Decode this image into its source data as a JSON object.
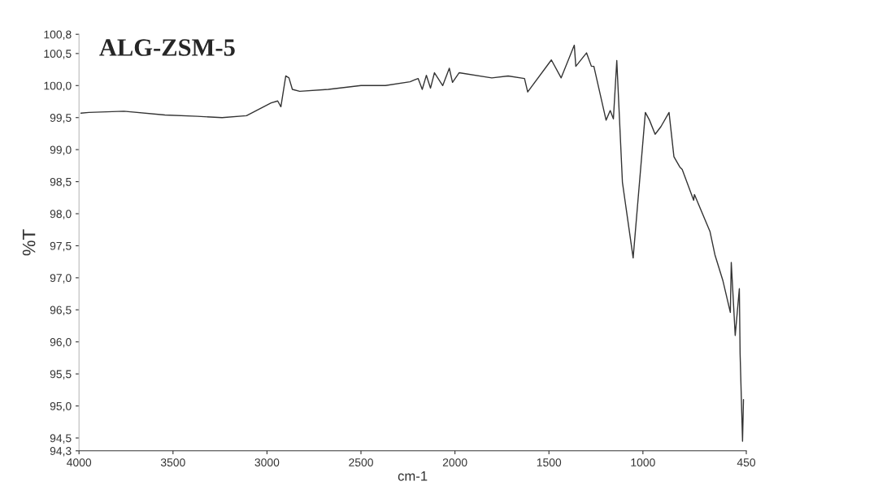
{
  "chart_data": {
    "type": "line",
    "title": "ALG-ZSM-5",
    "xlabel": "cm-1",
    "ylabel": "%T",
    "xlim": [
      4000,
      450
    ],
    "xticks": [
      4000,
      3500,
      3000,
      2500,
      2000,
      1500,
      1000,
      450
    ],
    "ylim": [
      94.3,
      100.8
    ],
    "yticks": [
      {
        "value": 94.3,
        "label": "94,3"
      },
      {
        "value": 94.5,
        "label": "94,5"
      },
      {
        "value": 95.0,
        "label": "95,0"
      },
      {
        "value": 95.5,
        "label": "95,5"
      },
      {
        "value": 96.0,
        "label": "96,0"
      },
      {
        "value": 96.5,
        "label": "96,5"
      },
      {
        "value": 97.0,
        "label": "97,0"
      },
      {
        "value": 97.5,
        "label": "97,5"
      },
      {
        "value": 98.0,
        "label": "98,0"
      },
      {
        "value": 98.5,
        "label": "98,5"
      },
      {
        "value": 99.0,
        "label": "99,0"
      },
      {
        "value": 99.5,
        "label": "99,5"
      },
      {
        "value": 100.0,
        "label": "100,0"
      },
      {
        "value": 100.5,
        "label": "100,5"
      },
      {
        "value": 100.8,
        "label": "100,8"
      }
    ],
    "grid": false,
    "legend": false,
    "series": [
      {
        "color": "#333333",
        "x": [
          3990,
          3948,
          3761,
          3543,
          3370,
          3239,
          3109,
          2978,
          2943,
          2926,
          2900,
          2883,
          2865,
          2826,
          2674,
          2500,
          2370,
          2239,
          2196,
          2174,
          2152,
          2130,
          2109,
          2065,
          2030,
          2013,
          1978,
          1804,
          1717,
          1630,
          1613,
          1487,
          1435,
          1365,
          1357,
          1300,
          1274,
          1261,
          1196,
          1174,
          1157,
          1139,
          1109,
          1052,
          987,
          965,
          935,
          904,
          861,
          835,
          804,
          791,
          730,
          726,
          643,
          617,
          574,
          535,
          530,
          509,
          487,
          483,
          470,
          465
        ],
        "values": [
          99.57,
          99.58,
          99.6,
          99.54,
          99.52,
          99.5,
          99.53,
          99.73,
          99.76,
          99.67,
          100.15,
          100.12,
          99.94,
          99.91,
          99.94,
          100.0,
          100.0,
          100.06,
          100.11,
          99.94,
          100.16,
          99.96,
          100.2,
          100.0,
          100.27,
          100.05,
          100.2,
          100.12,
          100.15,
          100.11,
          99.9,
          100.4,
          100.12,
          100.63,
          100.3,
          100.51,
          100.3,
          100.3,
          99.46,
          99.61,
          99.48,
          100.39,
          98.49,
          97.31,
          99.58,
          99.46,
          99.24,
          99.36,
          99.58,
          98.89,
          98.73,
          98.69,
          98.21,
          98.3,
          97.72,
          97.36,
          96.95,
          96.46,
          97.24,
          96.1,
          96.83,
          95.82,
          94.45,
          95.1
        ]
      }
    ]
  }
}
